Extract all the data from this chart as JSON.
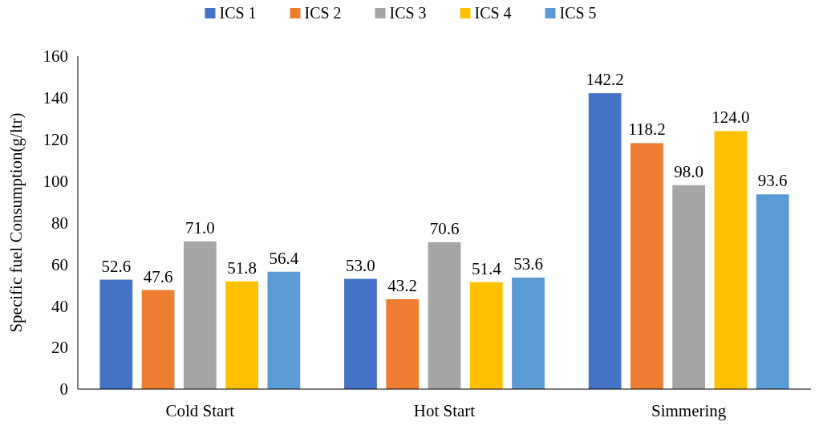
{
  "chart_data": {
    "type": "bar",
    "ylabel": "Specific fuel Consumption(g/ltr)",
    "categories": [
      "Cold Start",
      "Hot Start",
      "Simmering"
    ],
    "series": [
      {
        "name": "ICS 1",
        "color": "#4472c4",
        "values": [
          52.6,
          53.0,
          142.2
        ],
        "value_labels": [
          "52.6",
          "53.0",
          "142.2"
        ]
      },
      {
        "name": "ICS 2",
        "color": "#ed7d31",
        "values": [
          47.6,
          43.2,
          118.2
        ],
        "value_labels": [
          "47.6",
          "43.2",
          "118.2"
        ]
      },
      {
        "name": "ICS 3",
        "color": "#a5a5a5",
        "values": [
          71.0,
          70.6,
          98.0
        ],
        "value_labels": [
          "71.0",
          "70.6",
          "98.0"
        ]
      },
      {
        "name": "ICS 4",
        "color": "#ffc000",
        "values": [
          51.8,
          51.4,
          124.0
        ],
        "value_labels": [
          "51.8",
          "51.4",
          "124.0"
        ]
      },
      {
        "name": "ICS 5",
        "color": "#5b9bd5",
        "values": [
          56.4,
          53.6,
          93.6
        ],
        "value_labels": [
          "56.4",
          "53.6",
          "93.6"
        ]
      }
    ],
    "ylim": [
      0,
      160
    ],
    "yticks": [
      0,
      20,
      40,
      60,
      80,
      100,
      120,
      140,
      160
    ],
    "grid": false,
    "legend": "top"
  }
}
